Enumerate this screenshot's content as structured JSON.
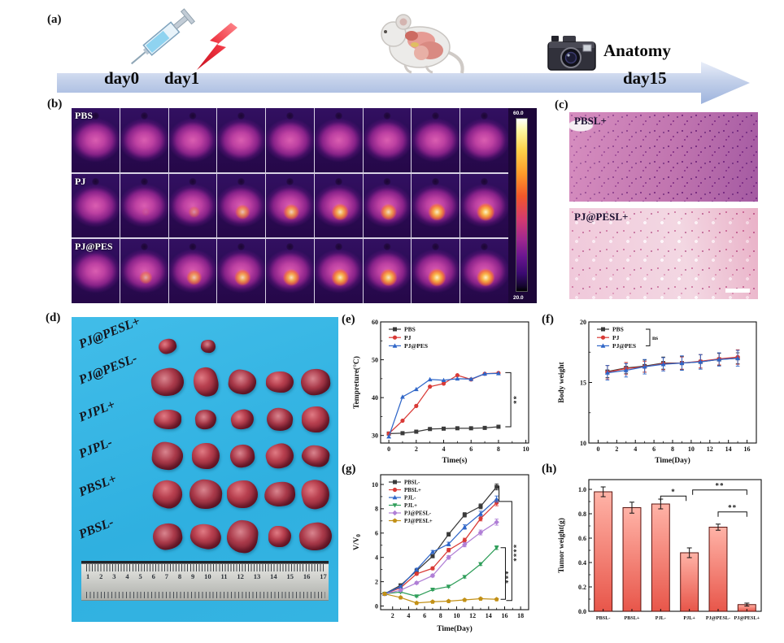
{
  "labels": {
    "a": "(a)",
    "b": "(b)",
    "c": "(c)",
    "d": "(d)",
    "e": "(e)",
    "f": "(f)",
    "g": "(g)",
    "h": "(h)"
  },
  "panel_a": {
    "day0": "day0",
    "day1": "day1",
    "anatomy": "Anatomy",
    "day15": "day15",
    "arrow_color_light": "#e9eef9",
    "arrow_color_dark": "#9db3dd",
    "icons": [
      "syringe-icon",
      "laser-bolt-icon",
      "mouse-icon",
      "camera-icon"
    ]
  },
  "panel_b": {
    "columns": 9,
    "rows": [
      {
        "label": "PBS",
        "hotspot": [
          0,
          0,
          0,
          0,
          0,
          0,
          0,
          0,
          0
        ]
      },
      {
        "label": "PJ",
        "hotspot": [
          0,
          0.1,
          0.4,
          0.7,
          0.8,
          0.9,
          0.85,
          0.95,
          1
        ]
      },
      {
        "label": "PJ@PES",
        "hotspot": [
          0,
          0.55,
          0.75,
          0.85,
          0.9,
          0.95,
          0.95,
          1,
          1
        ]
      }
    ],
    "colorbar": {
      "max": "60.0",
      "min": "20.0"
    }
  },
  "panel_c": {
    "images": [
      {
        "label": "PBSL+"
      },
      {
        "label": "PJ@PESL+"
      }
    ]
  },
  "panel_d": {
    "groups": [
      {
        "label": "PJ@PESL+",
        "sizes": [
          [
            22,
            18
          ],
          [
            18,
            16
          ]
        ]
      },
      {
        "label": "PJ@PESL-",
        "sizes": [
          [
            40,
            34
          ],
          [
            30,
            36
          ],
          [
            34,
            30
          ],
          [
            34,
            26
          ],
          [
            36,
            32
          ]
        ]
      },
      {
        "label": "PJPL+",
        "sizes": [
          [
            34,
            24
          ],
          [
            26,
            24
          ],
          [
            28,
            24
          ],
          [
            32,
            28
          ],
          [
            34,
            32
          ]
        ]
      },
      {
        "label": "PJPL-",
        "sizes": [
          [
            38,
            34
          ],
          [
            34,
            32
          ],
          [
            30,
            28
          ],
          [
            34,
            30
          ],
          [
            34,
            26
          ]
        ]
      },
      {
        "label": "PBSL+",
        "sizes": [
          [
            36,
            34
          ],
          [
            40,
            36
          ],
          [
            38,
            34
          ],
          [
            38,
            30
          ],
          [
            34,
            36
          ]
        ]
      },
      {
        "label": "PBSL-",
        "sizes": [
          [
            36,
            32
          ],
          [
            38,
            30
          ],
          [
            38,
            40
          ],
          [
            28,
            26
          ],
          [
            40,
            34
          ]
        ]
      }
    ],
    "ruler_numbers": [
      "1",
      "2",
      "3",
      "4",
      "5",
      "6",
      "7",
      "8",
      "9",
      "10",
      "11",
      "12",
      "13",
      "14",
      "15",
      "16",
      "17"
    ]
  },
  "chart_data": [
    {
      "id": "chart-e",
      "type": "line",
      "title": "",
      "xlabel": "Time(s)",
      "ylabel": "Tempreture(°C)",
      "xlim": [
        -0.6,
        10.2
      ],
      "ylim": [
        28,
        60
      ],
      "xticks": [
        0,
        2,
        4,
        6,
        8,
        10
      ],
      "yticks": [
        30,
        40,
        50,
        60
      ],
      "x": [
        0,
        1,
        2,
        3,
        4,
        5,
        6,
        7,
        8
      ],
      "series": [
        {
          "name": "PBS",
          "color": "#3a3a3a",
          "marker": "square",
          "values": [
            30.5,
            30.6,
            31.0,
            31.7,
            31.8,
            31.9,
            31.9,
            32.0,
            32.3
          ]
        },
        {
          "name": "PJ",
          "color": "#d93a36",
          "marker": "circle",
          "values": [
            30.5,
            33.9,
            37.8,
            42.9,
            43.7,
            45.9,
            44.8,
            46.3,
            46.5
          ]
        },
        {
          "name": "PJ@PES",
          "color": "#2f66c8",
          "marker": "triangle",
          "values": [
            29.7,
            40.2,
            42.2,
            44.8,
            44.6,
            45.0,
            44.9,
            46.3,
            46.4
          ]
        }
      ],
      "annotations": [
        {
          "points": [
            [
              8.5,
              46.6
            ],
            [
              8.9,
              46.6
            ],
            [
              8.9,
              32.3
            ],
            [
              8.5,
              32.3
            ]
          ],
          "label": {
            "x": 9.5,
            "y": 39.5,
            "text": "**",
            "rot": -90
          }
        }
      ]
    },
    {
      "id": "chart-f",
      "type": "line",
      "title": "",
      "xlabel": "Time(Day)",
      "ylabel": "Body weight",
      "xlim": [
        -1,
        17
      ],
      "ylim": [
        10,
        20
      ],
      "xticks": [
        0,
        2,
        4,
        6,
        8,
        10,
        12,
        14,
        16
      ],
      "yticks": [
        10,
        15,
        20
      ],
      "x": [
        1,
        3,
        5,
        7,
        9,
        11,
        13,
        15
      ],
      "legend_note": "ns",
      "series": [
        {
          "name": "PBS",
          "color": "#3a3a3a",
          "marker": "square",
          "values": [
            15.9,
            16.2,
            16.35,
            16.6,
            16.6,
            16.7,
            16.9,
            17.0
          ],
          "errors": [
            0.5,
            0.45,
            0.5,
            0.5,
            0.55,
            0.6,
            0.5,
            0.45
          ]
        },
        {
          "name": "PJ",
          "color": "#d93a36",
          "marker": "circle",
          "values": [
            15.85,
            16.15,
            16.3,
            16.55,
            16.6,
            16.75,
            16.95,
            17.1
          ],
          "errors": [
            0.55,
            0.5,
            0.45,
            0.5,
            0.5,
            0.55,
            0.5,
            0.6
          ]
        },
        {
          "name": "PJ@PES",
          "color": "#2f66c8",
          "marker": "triangle",
          "values": [
            15.8,
            16.0,
            16.3,
            16.5,
            16.6,
            16.7,
            16.9,
            17.0
          ],
          "errors": [
            0.6,
            0.55,
            0.6,
            0.55,
            0.6,
            0.6,
            0.55,
            0.65
          ]
        }
      ],
      "annotations": []
    },
    {
      "id": "chart-g",
      "type": "line",
      "title": "",
      "xlabel": "Time(Day)",
      "ylabel": "V/V",
      "ylabel_sub": "0",
      "xlim": [
        0.5,
        19
      ],
      "ylim": [
        -0.3,
        10.8
      ],
      "xticks": [
        2,
        4,
        6,
        8,
        10,
        12,
        14,
        16,
        18
      ],
      "yticks": [
        0,
        2,
        4,
        6,
        8,
        10
      ],
      "x": [
        1,
        3,
        5,
        7,
        9,
        11,
        13,
        15
      ],
      "legend_font": 6.8,
      "series": [
        {
          "name": "PBSL-",
          "color": "#3a3a3a",
          "marker": "square",
          "values": [
            1,
            1.7,
            2.9,
            4.1,
            5.9,
            7.5,
            8.2,
            9.8
          ],
          "errors": [
            0.05,
            0.08,
            0.1,
            0.12,
            0.15,
            0.18,
            0.2,
            0.25
          ]
        },
        {
          "name": "PBSL+",
          "color": "#d93a36",
          "marker": "circle",
          "values": [
            1,
            1.5,
            2.65,
            3.1,
            4.6,
            5.4,
            7.2,
            8.5
          ],
          "errors": [
            0.05,
            0.08,
            0.1,
            0.12,
            0.15,
            0.18,
            0.2,
            0.25
          ]
        },
        {
          "name": "PJL-",
          "color": "#2f66c8",
          "marker": "triangle",
          "values": [
            1,
            1.6,
            3.0,
            4.45,
            5.1,
            6.5,
            7.6,
            8.8
          ],
          "errors": [
            0.05,
            0.08,
            0.1,
            0.12,
            0.15,
            0.18,
            0.2,
            0.25
          ]
        },
        {
          "name": "PJL+",
          "color": "#2f9e5a",
          "marker": "triangle-down",
          "values": [
            1,
            1.15,
            0.8,
            1.35,
            1.6,
            2.4,
            3.45,
            4.8
          ],
          "errors": [
            0.05,
            0.06,
            0.06,
            0.08,
            0.08,
            0.1,
            0.12,
            0.15
          ]
        },
        {
          "name": "PJ@PESL-",
          "color": "#b07fd6",
          "marker": "diamond",
          "values": [
            1,
            1.3,
            1.9,
            2.5,
            4.0,
            5.05,
            6.05,
            6.9
          ],
          "errors": [
            0.05,
            0.08,
            0.1,
            0.12,
            0.15,
            0.18,
            0.2,
            0.25
          ]
        },
        {
          "name": "PJ@PESL+",
          "color": "#c29016",
          "marker": "pentagon",
          "values": [
            1,
            0.7,
            0.25,
            0.35,
            0.4,
            0.5,
            0.6,
            0.55
          ],
          "errors": [
            0.04,
            0.04,
            0.04,
            0.05,
            0.05,
            0.05,
            0.06,
            0.06
          ]
        }
      ],
      "annotations": [
        {
          "points": [
            [
              15.3,
              9.9
            ],
            [
              15.3,
              8.6
            ],
            [
              16.9,
              8.6
            ],
            [
              16.9,
              0.45
            ],
            [
              16.2,
              0.45
            ]
          ],
          "label": {
            "x": 17.8,
            "y": 4.4,
            "text": "****",
            "rot": -90
          }
        },
        {
          "points": [
            [
              15.5,
              4.8
            ],
            [
              16.1,
              4.8
            ],
            [
              16.1,
              0.55
            ],
            [
              15.5,
              0.55
            ]
          ],
          "label": {
            "x": 16.75,
            "y": 2.4,
            "text": "***",
            "rot": -90
          }
        }
      ]
    },
    {
      "id": "chart-h",
      "type": "bar",
      "title": "",
      "xlabel": "",
      "ylabel": "Tumor weight(g)",
      "ylim": [
        0,
        1.08
      ],
      "yticks": [
        0,
        0.2,
        0.4,
        0.6,
        0.8,
        1.0
      ],
      "categories": [
        "PBSL-",
        "PBSL+",
        "PJL-",
        "PJL+",
        "PJ@PESL-",
        "PJ@PESL+"
      ],
      "values": [
        0.98,
        0.85,
        0.88,
        0.48,
        0.69,
        0.055
      ],
      "errors": [
        0.04,
        0.045,
        0.04,
        0.04,
        0.025,
        0.012
      ],
      "bar_top": "#ffb3a7",
      "bar_bottom": "#e8564a",
      "bar_stroke": "#5a1510",
      "annotations": [
        {
          "type": "hbracket",
          "i1": 2,
          "i2": 3,
          "y": 0.945,
          "dx2": -4,
          "label": "*"
        },
        {
          "type": "hbracket",
          "i1": 3,
          "i2": 5,
          "y": 0.995,
          "dx1": 4,
          "label": "**"
        },
        {
          "type": "hbracket",
          "i1": 4,
          "i2": 5,
          "y": 0.815,
          "label": "**"
        }
      ]
    }
  ]
}
